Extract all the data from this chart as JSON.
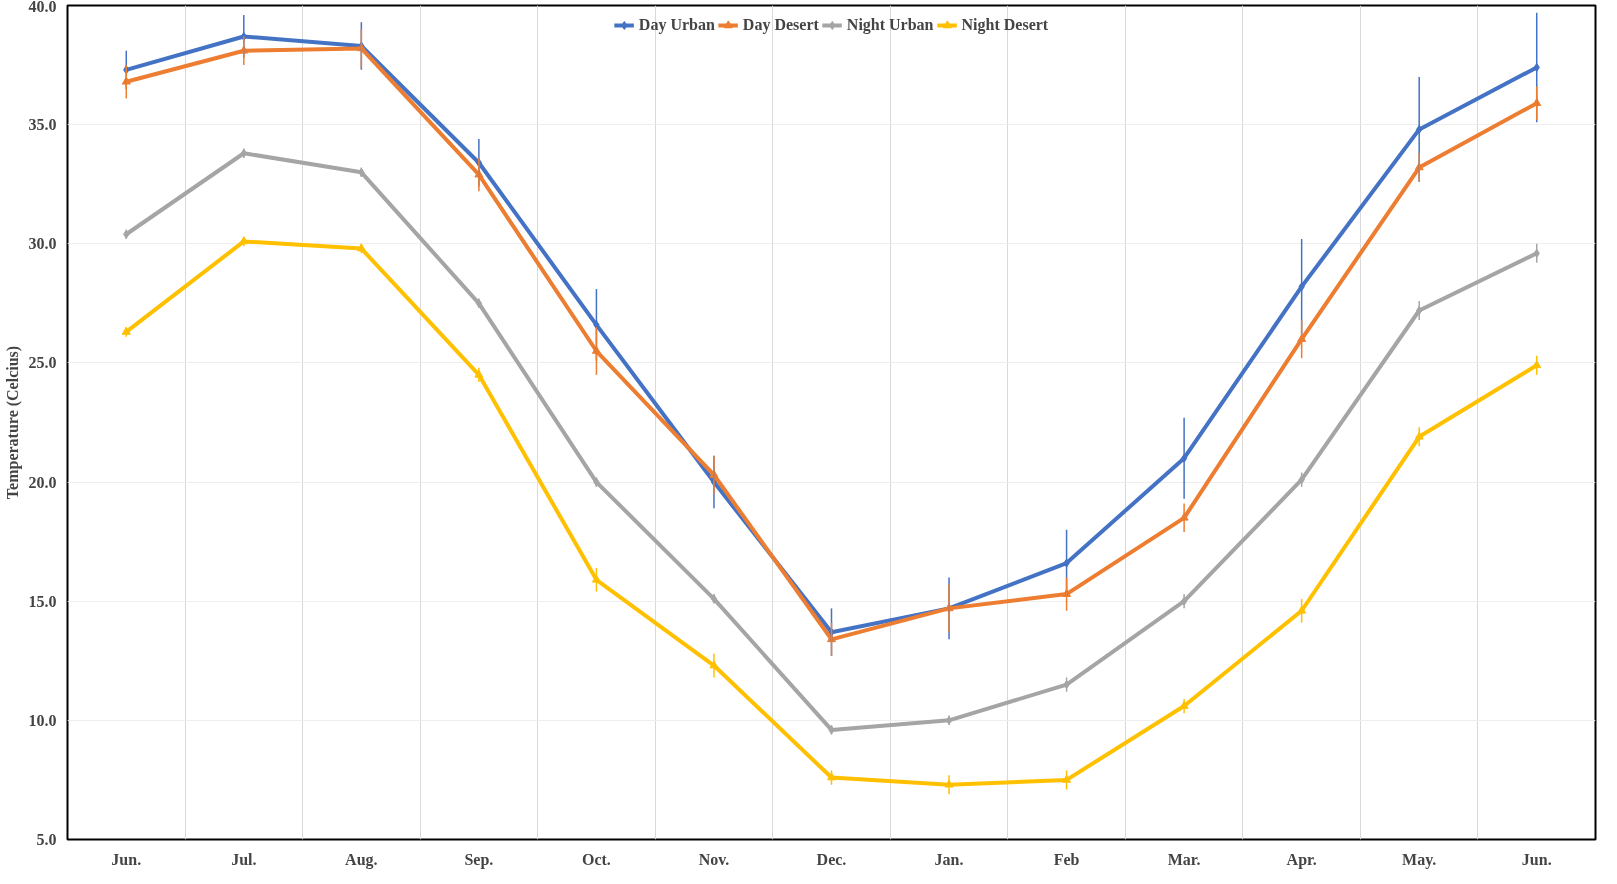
{
  "chart_data": {
    "type": "line",
    "ylabel": "Temperature (Celcius)",
    "categories": [
      "Jun.",
      "Jul.",
      "Aug.",
      "Sep.",
      "Oct.",
      "Nov.",
      "Dec.",
      "Jan.",
      "Feb",
      "Mar.",
      "Apr.",
      "May.",
      "Jun."
    ],
    "ylim": [
      5,
      40
    ],
    "yticks": [
      {
        "value": 5,
        "label": "5.0"
      },
      {
        "value": 10,
        "label": "10.0"
      },
      {
        "value": 15,
        "label": "15.0"
      },
      {
        "value": 20,
        "label": "20.0"
      },
      {
        "value": 25,
        "label": "25.0"
      },
      {
        "value": 30,
        "label": "30.0"
      },
      {
        "value": 35,
        "label": "35.0"
      },
      {
        "value": 40,
        "label": "40.0"
      }
    ],
    "grid": true,
    "legend": "top",
    "line_style": "solid",
    "series": [
      {
        "name": "Day Urban",
        "color": "#4472c4",
        "marker": "diamond",
        "values": [
          37.3,
          38.7,
          38.3,
          33.4,
          26.6,
          20.0,
          13.7,
          14.7,
          16.6,
          21.0,
          28.2,
          34.8,
          37.4
        ],
        "errors": [
          0.8,
          0.9,
          1.0,
          1.0,
          1.5,
          1.1,
          1.0,
          1.3,
          1.4,
          1.7,
          2.0,
          2.2,
          2.3
        ]
      },
      {
        "name": "Day Desert",
        "color": "#ed7d31",
        "marker": "triangle",
        "values": [
          36.8,
          38.1,
          38.2,
          32.9,
          25.5,
          20.3,
          13.4,
          14.7,
          15.3,
          18.5,
          26.0,
          33.2,
          35.9
        ],
        "errors": [
          0.7,
          0.6,
          0.8,
          0.7,
          1.0,
          0.8,
          0.7,
          1.0,
          0.7,
          0.6,
          0.8,
          0.6,
          0.7
        ]
      },
      {
        "name": "Night Urban",
        "color": "#a5a5a5",
        "marker": "diamond",
        "values": [
          30.4,
          33.8,
          33.0,
          27.5,
          20.0,
          15.1,
          9.6,
          10.0,
          11.5,
          15.0,
          20.1,
          27.2,
          29.6
        ],
        "errors": [
          0.2,
          0.2,
          0.2,
          0.2,
          0.2,
          0.2,
          0.2,
          0.2,
          0.3,
          0.3,
          0.3,
          0.4,
          0.4
        ]
      },
      {
        "name": "Night Desert",
        "color": "#ffc000",
        "marker": "triangle",
        "values": [
          26.3,
          30.1,
          29.8,
          24.5,
          15.9,
          12.3,
          7.6,
          7.3,
          7.5,
          10.6,
          14.6,
          21.9,
          24.9
        ],
        "errors": [
          0.2,
          0.2,
          0.2,
          0.3,
          0.5,
          0.5,
          0.3,
          0.4,
          0.4,
          0.3,
          0.5,
          0.4,
          0.4
        ]
      }
    ]
  }
}
